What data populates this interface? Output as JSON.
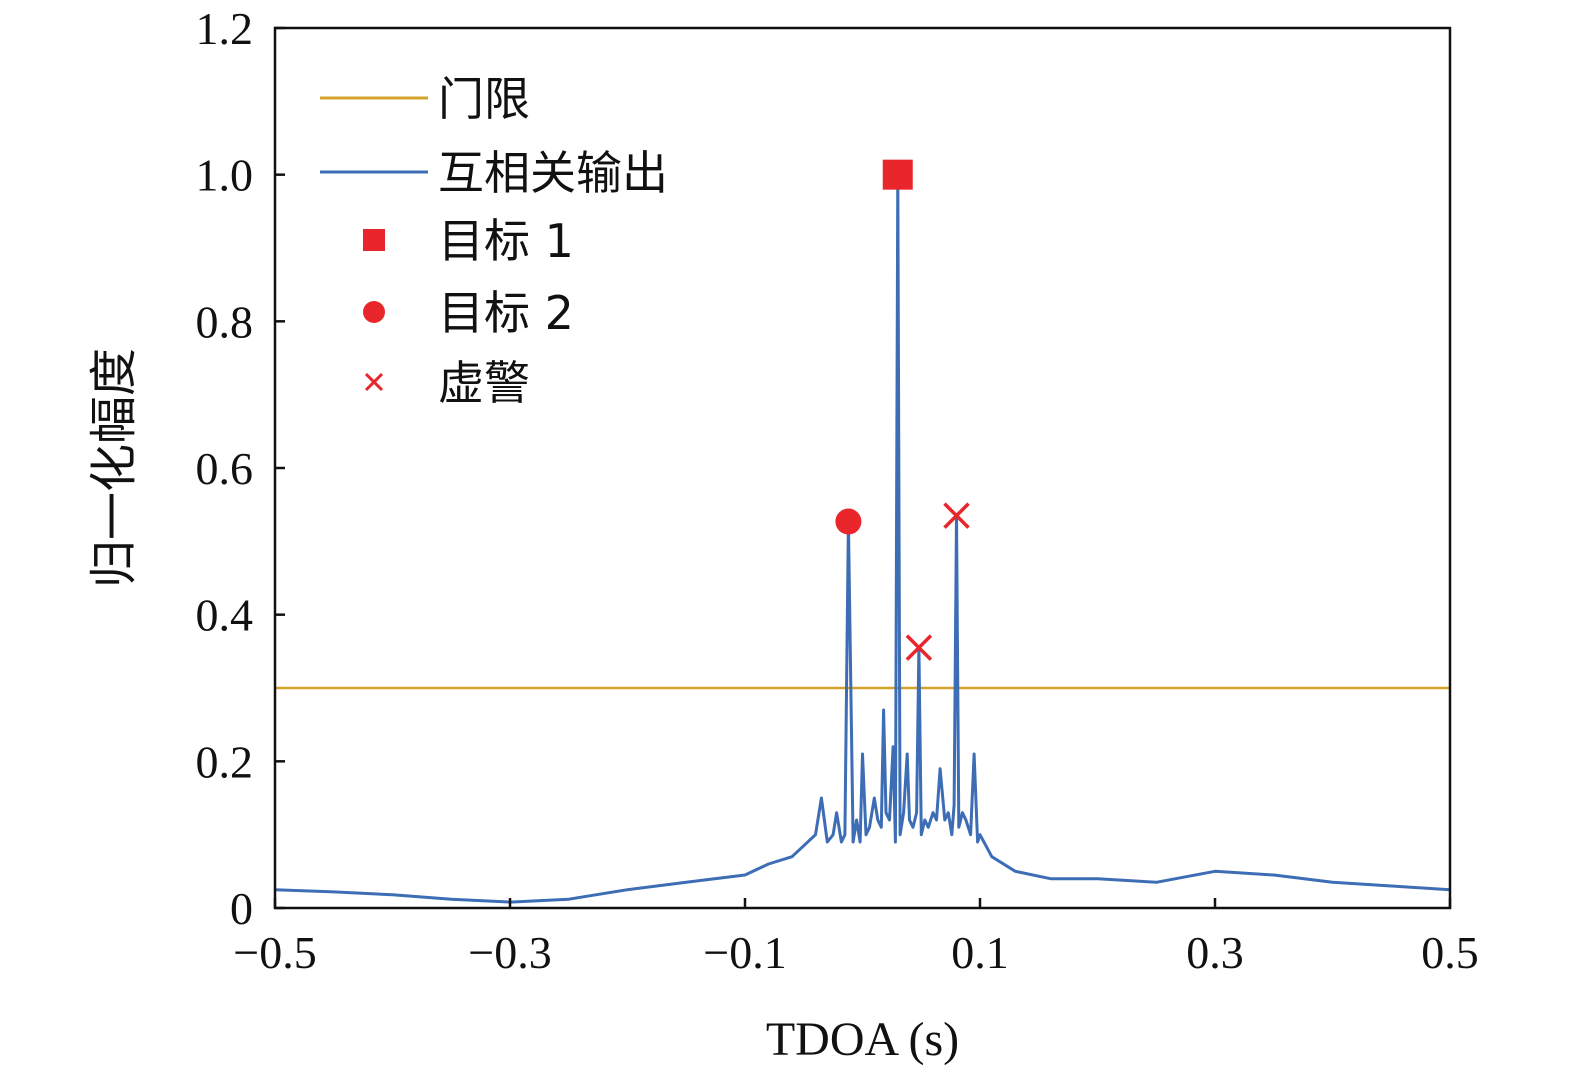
{
  "chart_data": {
    "type": "line",
    "xlabel": "TDOA (s)",
    "ylabel": "归一化幅度",
    "xlim": [
      -0.5,
      0.5
    ],
    "ylim": [
      0,
      1.2
    ],
    "x_ticks": [
      -0.5,
      -0.3,
      -0.1,
      0.1,
      0.3,
      0.5
    ],
    "x_tick_labels": [
      "−0.5",
      "−0.3",
      "−0.1",
      "0.1",
      "0.3",
      "0.5"
    ],
    "y_ticks": [
      0,
      0.2,
      0.4,
      0.6,
      0.8,
      1.0,
      1.2
    ],
    "y_tick_labels": [
      "0",
      "0.2",
      "0.4",
      "0.6",
      "0.8",
      "1.0",
      "1.2"
    ],
    "grid": false,
    "legend_position": "top-left",
    "colors": {
      "threshold": "#D4A32A",
      "correlation": "#3D6DB5",
      "markers": "#E8262B"
    },
    "series": [
      {
        "name": "门限",
        "kind": "line",
        "x": [
          -0.5,
          0.5
        ],
        "y": [
          0.3,
          0.3
        ]
      },
      {
        "name": "互相关输出",
        "kind": "line",
        "x": [
          -0.5,
          -0.45,
          -0.4,
          -0.35,
          -0.3,
          -0.25,
          -0.2,
          -0.15,
          -0.1,
          -0.08,
          -0.06,
          -0.05,
          -0.04,
          -0.035,
          -0.03,
          -0.025,
          -0.022,
          -0.02,
          -0.018,
          -0.015,
          -0.012,
          -0.008,
          -0.005,
          -0.002,
          0.0,
          0.003,
          0.006,
          0.01,
          0.013,
          0.016,
          0.018,
          0.02,
          0.023,
          0.026,
          0.028,
          0.03,
          0.032,
          0.035,
          0.038,
          0.04,
          0.043,
          0.046,
          0.048,
          0.05,
          0.053,
          0.056,
          0.06,
          0.063,
          0.066,
          0.07,
          0.073,
          0.076,
          0.078,
          0.08,
          0.082,
          0.085,
          0.088,
          0.092,
          0.095,
          0.098,
          0.1,
          0.11,
          0.13,
          0.16,
          0.2,
          0.25,
          0.3,
          0.35,
          0.4,
          0.45,
          0.5
        ],
        "y": [
          0.025,
          0.022,
          0.018,
          0.012,
          0.008,
          0.012,
          0.025,
          0.035,
          0.045,
          0.06,
          0.07,
          0.085,
          0.1,
          0.15,
          0.09,
          0.1,
          0.13,
          0.11,
          0.09,
          0.1,
          0.527,
          0.09,
          0.12,
          0.09,
          0.21,
          0.1,
          0.11,
          0.15,
          0.12,
          0.11,
          0.27,
          0.13,
          0.12,
          0.22,
          0.09,
          1.0,
          0.1,
          0.13,
          0.21,
          0.12,
          0.11,
          0.13,
          0.355,
          0.1,
          0.12,
          0.11,
          0.13,
          0.12,
          0.19,
          0.12,
          0.13,
          0.1,
          0.14,
          0.535,
          0.11,
          0.13,
          0.12,
          0.1,
          0.21,
          0.09,
          0.1,
          0.07,
          0.05,
          0.04,
          0.04,
          0.035,
          0.05,
          0.045,
          0.035,
          0.03,
          0.025
        ]
      },
      {
        "name": "目标 1",
        "kind": "marker",
        "marker": "square",
        "x": [
          0.03
        ],
        "y": [
          1.0
        ]
      },
      {
        "name": "目标 2",
        "kind": "marker",
        "marker": "circle",
        "x": [
          -0.012
        ],
        "y": [
          0.527
        ]
      },
      {
        "name": "虚警",
        "kind": "marker",
        "marker": "x",
        "x": [
          0.048,
          0.08
        ],
        "y": [
          0.355,
          0.535
        ]
      }
    ]
  }
}
